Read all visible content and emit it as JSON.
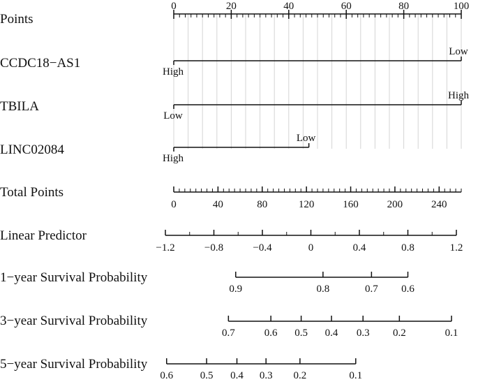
{
  "chart_data": {
    "type": "nomogram",
    "title": "",
    "points_scale": {
      "label": "Points",
      "min": 0,
      "max": 100,
      "major": [
        0,
        20,
        40,
        60,
        80,
        100
      ],
      "minor_step": 2,
      "grid_step": 5
    },
    "predictors": [
      {
        "label": "CCDC18−AS1",
        "levels": [
          {
            "label": "High",
            "points": 0
          },
          {
            "label": "Low",
            "points": 100
          }
        ]
      },
      {
        "label": "TBILA",
        "levels": [
          {
            "label": "Low",
            "points": 0
          },
          {
            "label": "High",
            "points": 100
          }
        ]
      },
      {
        "label": "LINC02084",
        "levels": [
          {
            "label": "High",
            "points": 0
          },
          {
            "label": "Low",
            "points": 47
          }
        ]
      }
    ],
    "total_points": {
      "label": "Total Points",
      "min": 0,
      "max": 260,
      "major": [
        0,
        40,
        80,
        120,
        160,
        200,
        240
      ],
      "minor_step": 5
    },
    "linear_predictor": {
      "label": "Linear Predictor",
      "ticks": [
        {
          "value": -1.2,
          "label": "−1.2"
        },
        {
          "value": -0.8,
          "label": "−0.8"
        },
        {
          "value": -0.4,
          "label": "−0.4"
        },
        {
          "value": 0,
          "label": "0"
        },
        {
          "value": 0.4,
          "label": "0.4"
        },
        {
          "value": 0.8,
          "label": "0.8"
        },
        {
          "value": 1.2,
          "label": "1.2"
        }
      ],
      "minor_step": 0.2
    },
    "survival": [
      {
        "label": "1−year Survival Probability",
        "ticks": [
          {
            "value": 0.9,
            "lp": -0.62
          },
          {
            "value": 0.8,
            "lp": 0.1
          },
          {
            "value": 0.7,
            "lp": 0.5
          },
          {
            "value": 0.6,
            "lp": 0.8
          }
        ]
      },
      {
        "label": "3−year Survival Probability",
        "ticks": [
          {
            "value": 0.7,
            "lp": -0.68
          },
          {
            "value": 0.6,
            "lp": -0.33
          },
          {
            "value": 0.5,
            "lp": -0.08
          },
          {
            "value": 0.4,
            "lp": 0.17
          },
          {
            "value": 0.3,
            "lp": 0.43
          },
          {
            "value": 0.2,
            "lp": 0.73
          },
          {
            "value": 0.1,
            "lp": 1.16
          }
        ]
      },
      {
        "label": "5−year Survival Probability",
        "ticks": [
          {
            "value": 0.6,
            "lp": -1.19
          },
          {
            "value": 0.5,
            "lp": -0.86
          },
          {
            "value": 0.4,
            "lp": -0.61
          },
          {
            "value": 0.3,
            "lp": -0.37
          },
          {
            "value": 0.2,
            "lp": -0.09
          },
          {
            "value": 0.1,
            "lp": 0.37
          }
        ]
      }
    ]
  }
}
